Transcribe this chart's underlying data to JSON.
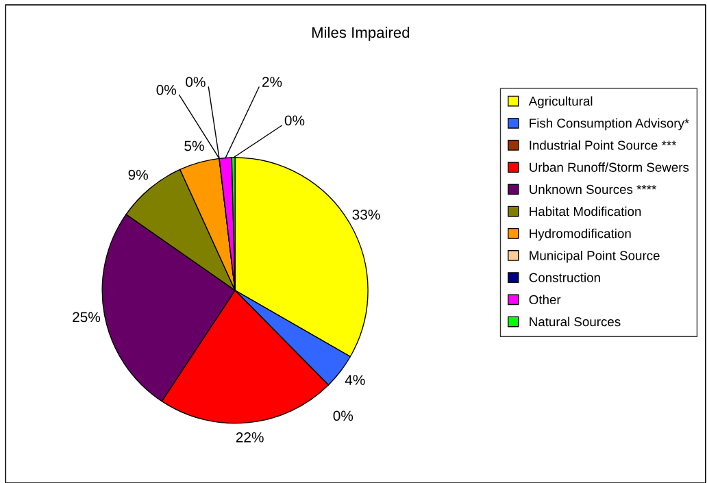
{
  "chart_data": {
    "type": "pie",
    "title": "Miles Impaired",
    "categories": [
      "Agricultural",
      "Fish Consumption Advisory*",
      "Industrial Point Source ***",
      "Urban Runoff/Storm Sewers",
      "Unknown Sources ****",
      "Habitat Modification",
      "Hydromodification",
      "Municipal Point Source",
      "Construction",
      "Other",
      "Natural Sources"
    ],
    "values": [
      33.3,
      4.3,
      0,
      21.7,
      25.4,
      8.5,
      4.9,
      0,
      0,
      1.5,
      0.4
    ],
    "value_labels": [
      "33%",
      "4%",
      "0%",
      "22%",
      "25%",
      "9%",
      "5%",
      "0%",
      "0%",
      "2%",
      "0%"
    ],
    "colors": [
      "#ffff00",
      "#3366ff",
      "#993300",
      "#ff0000",
      "#660066",
      "#808000",
      "#ff9900",
      "#ffcc99",
      "#000080",
      "#ff00ff",
      "#00ff00"
    ],
    "legend": "right"
  }
}
